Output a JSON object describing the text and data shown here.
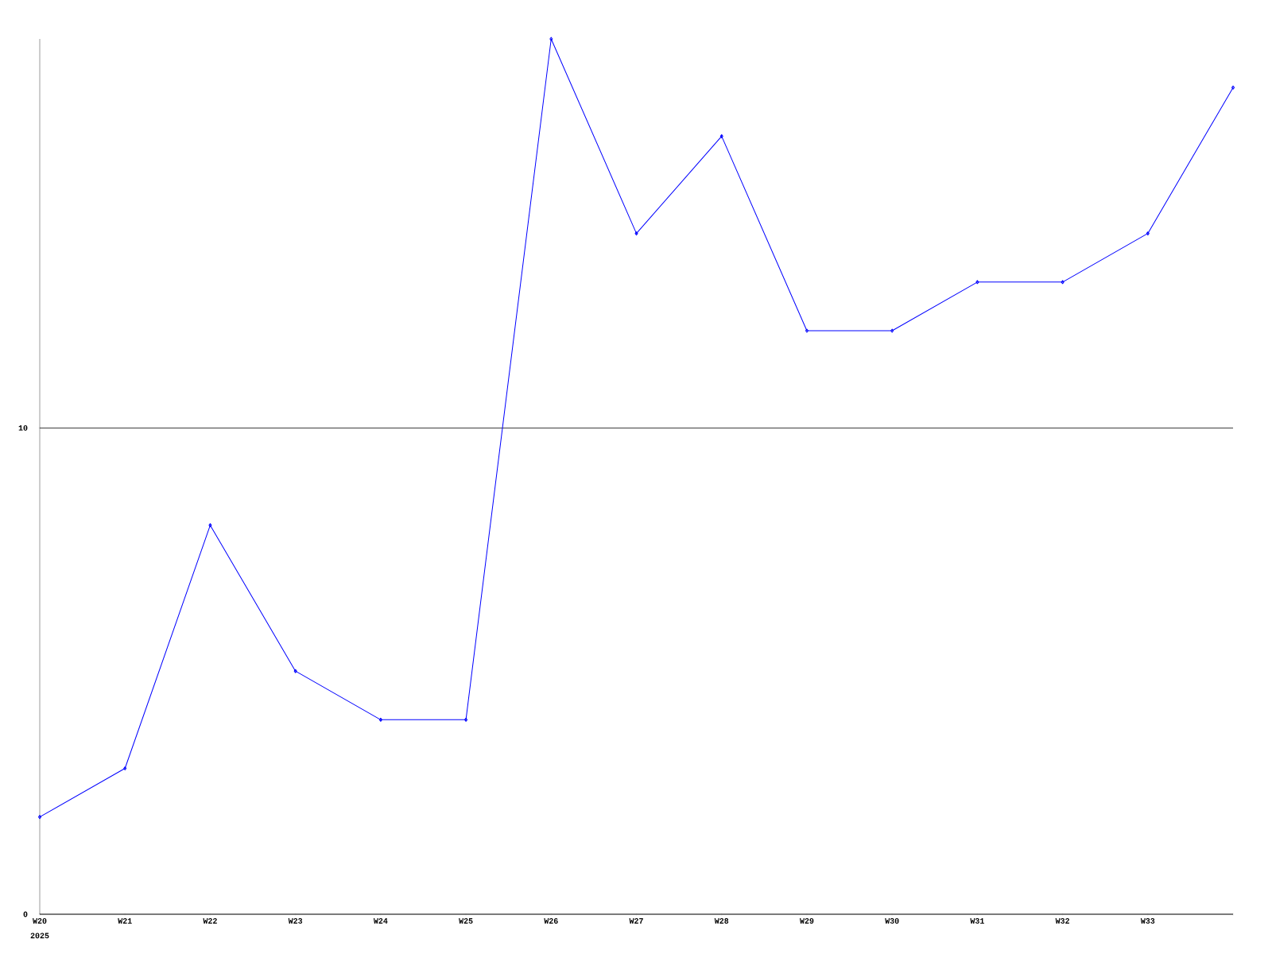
{
  "chart_data": {
    "type": "line",
    "categories": [
      "W20",
      "W21",
      "W22",
      "W23",
      "W24",
      "W25",
      "W26",
      "W27",
      "W28",
      "W29",
      "W30",
      "W31",
      "W32",
      "W33",
      null
    ],
    "series": [
      {
        "color": "#0000ff",
        "values": [
          2,
          3,
          8,
          5,
          4,
          4,
          18,
          14,
          16,
          12,
          12,
          13,
          13,
          14,
          17
        ]
      }
    ],
    "ylim": [
      0,
      18
    ],
    "yticks": [
      0,
      10
    ],
    "grid": "y",
    "marker": "diamond",
    "line_style": "solid",
    "annotations": [
      "2025"
    ]
  }
}
